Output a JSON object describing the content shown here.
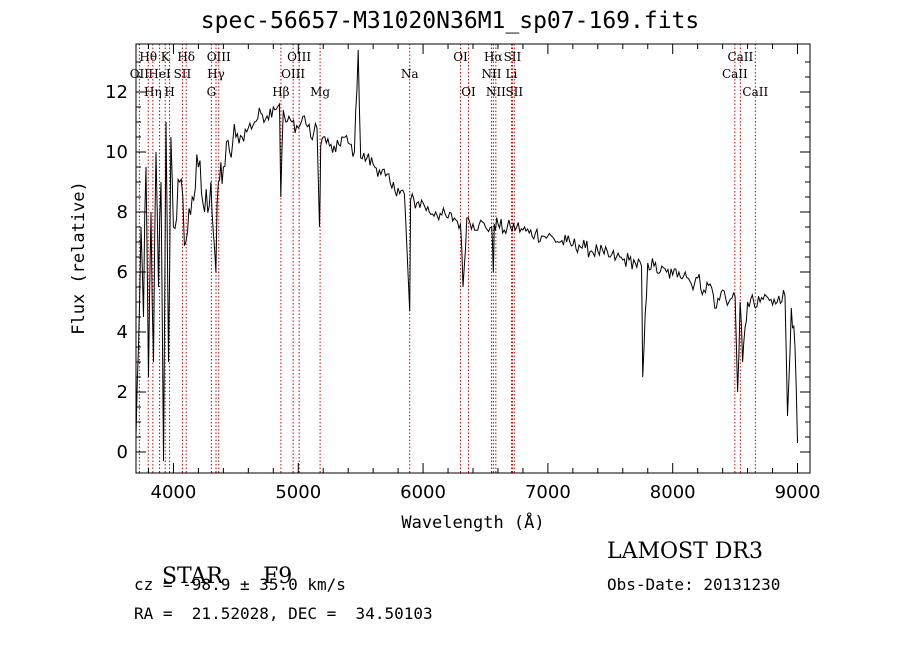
{
  "chart_data": {
    "type": "line",
    "title": "spec-56657-M31020N36M1_sp07-169.fits",
    "xlabel": "Wavelength (Å)",
    "ylabel": "Flux (relative)",
    "xlim": [
      3700,
      9100
    ],
    "ylim": [
      -0.7,
      13.6
    ],
    "xticks": [
      4000,
      5000,
      6000,
      7000,
      8000,
      9000
    ],
    "yticks": [
      0,
      2,
      4,
      6,
      8,
      10,
      12
    ],
    "series": [
      {
        "name": "spectrum",
        "x": [
          3700,
          3720,
          3740,
          3760,
          3780,
          3800,
          3820,
          3840,
          3860,
          3880,
          3900,
          3920,
          3940,
          3960,
          3980,
          4000,
          4050,
          4100,
          4150,
          4200,
          4250,
          4300,
          4340,
          4360,
          4400,
          4450,
          4500,
          4550,
          4600,
          4650,
          4700,
          4750,
          4800,
          4850,
          4860,
          4880,
          4900,
          4950,
          5000,
          5050,
          5100,
          5150,
          5170,
          5180,
          5200,
          5250,
          5300,
          5350,
          5400,
          5450,
          5480,
          5500,
          5550,
          5600,
          5650,
          5700,
          5750,
          5800,
          5850,
          5893,
          5900,
          5950,
          6000,
          6050,
          6100,
          6150,
          6200,
          6250,
          6300,
          6320,
          6350,
          6400,
          6450,
          6500,
          6550,
          6563,
          6570,
          6600,
          6650,
          6700,
          6750,
          6800,
          6850,
          6900,
          6950,
          7000,
          7050,
          7100,
          7150,
          7200,
          7250,
          7300,
          7350,
          7400,
          7450,
          7500,
          7550,
          7600,
          7650,
          7700,
          7750,
          7760,
          7800,
          7850,
          7900,
          7950,
          8000,
          8050,
          8100,
          8150,
          8200,
          8250,
          8300,
          8350,
          8400,
          8450,
          8500,
          8520,
          8540,
          8560,
          8600,
          8650,
          8662,
          8700,
          8750,
          8800,
          8850,
          8900,
          8920,
          8950,
          8980,
          9000
        ],
        "y": [
          0.5,
          3.5,
          7.5,
          4.5,
          9.5,
          2.5,
          8.0,
          3.0,
          10.0,
          5.5,
          9.0,
          -0.3,
          11.0,
          3.0,
          10.5,
          7.5,
          9.0,
          7.0,
          8.5,
          9.5,
          8.0,
          9.0,
          6.0,
          9.0,
          9.5,
          10.0,
          10.5,
          10.5,
          10.8,
          11.0,
          11.3,
          11.2,
          11.5,
          11.6,
          8.5,
          11.4,
          11.0,
          11.0,
          10.8,
          11.2,
          10.5,
          10.8,
          7.5,
          10.2,
          10.5,
          10.2,
          10.0,
          10.5,
          10.3,
          10.0,
          13.4,
          9.8,
          9.8,
          9.6,
          9.4,
          9.2,
          8.8,
          8.8,
          8.6,
          4.7,
          8.4,
          8.3,
          8.3,
          8.0,
          8.0,
          7.9,
          7.8,
          7.8,
          7.6,
          5.5,
          7.8,
          7.6,
          7.6,
          7.5,
          7.5,
          6.0,
          7.6,
          7.6,
          7.4,
          7.5,
          7.5,
          7.4,
          7.3,
          7.3,
          7.2,
          7.2,
          7.1,
          7.0,
          7.0,
          6.9,
          6.9,
          6.8,
          6.7,
          6.7,
          6.6,
          6.5,
          6.5,
          6.4,
          6.4,
          6.3,
          6.2,
          2.5,
          6.3,
          6.2,
          6.0,
          6.0,
          5.9,
          6.0,
          6.0,
          5.6,
          5.8,
          5.4,
          5.6,
          4.8,
          5.4,
          5.0,
          5.2,
          2.0,
          5.0,
          3.0,
          5.0,
          5.0,
          4.8,
          5.0,
          5.2,
          4.9,
          5.2,
          5.2,
          1.2,
          4.8,
          3.5,
          0.3
        ]
      }
    ],
    "line_markers": [
      {
        "name": "OII",
        "x": 3727,
        "row": 2
      },
      {
        "name": "Hθ",
        "x": 3798,
        "row": 1
      },
      {
        "name": "Hη",
        "x": 3835,
        "row": 3
      },
      {
        "name": "HeI",
        "x": 3889,
        "row": 2
      },
      {
        "name": "K",
        "x": 3934,
        "row": 1
      },
      {
        "name": "H",
        "x": 3969,
        "row": 3
      },
      {
        "name": "SII",
        "x": 4072,
        "row": 2
      },
      {
        "name": "Hδ",
        "x": 4102,
        "row": 1
      },
      {
        "name": "G",
        "x": 4304,
        "row": 3
      },
      {
        "name": "Hγ",
        "x": 4341,
        "row": 2
      },
      {
        "name": "OIII",
        "x": 4363,
        "row": 1
      },
      {
        "name": "Hβ",
        "x": 4861,
        "row": 3
      },
      {
        "name": "OIII",
        "x": 4959,
        "row": 2
      },
      {
        "name": "OIII",
        "x": 5007,
        "row": 1
      },
      {
        "name": "Mg",
        "x": 5175,
        "row": 3
      },
      {
        "name": "Na",
        "x": 5893,
        "row": 2
      },
      {
        "name": "OI",
        "x": 6300,
        "row": 1
      },
      {
        "name": "OI",
        "x": 6364,
        "row": 3
      },
      {
        "name": "NII",
        "x": 6548,
        "row": 2
      },
      {
        "name": "Hα",
        "x": 6563,
        "row": 1
      },
      {
        "name": "NII",
        "x": 6583,
        "row": 3
      },
      {
        "name": "Li",
        "x": 6708,
        "row": 2
      },
      {
        "name": "SII",
        "x": 6716,
        "row": 1
      },
      {
        "name": "SII",
        "x": 6731,
        "row": 3
      },
      {
        "name": "CaII",
        "x": 8498,
        "row": 2
      },
      {
        "name": "CaII",
        "x": 8542,
        "row": 1
      },
      {
        "name": "CaII",
        "x": 8662,
        "row": 3
      }
    ]
  },
  "info": {
    "class": "STAR",
    "subclass": "F9",
    "survey": "LAMOST DR3",
    "cz": "cz = -98.9 ± 35.0 km/s",
    "obs_date": "Obs-Date: 20131230",
    "radec": "RA =  21.52028, DEC =  34.50103"
  },
  "colors": {
    "marker": "#cc0000",
    "line": "#000000"
  }
}
